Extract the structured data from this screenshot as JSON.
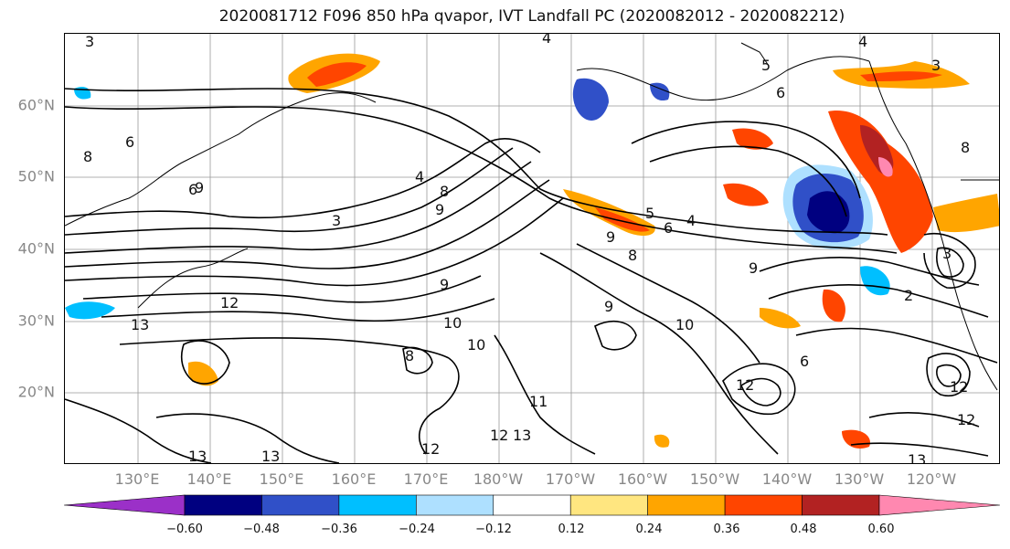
{
  "title": "2020081712 F096 850 hPa qvapor, IVT Landfall PC (2020082012 - 2020082212)",
  "map": {
    "lat_labels": [
      "60°N",
      "50°N",
      "40°N",
      "30°N",
      "20°N"
    ],
    "lon_labels": [
      "130°E",
      "140°E",
      "150°E",
      "160°E",
      "170°E",
      "180°W",
      "170°W",
      "160°W",
      "150°W",
      "140°W",
      "130°W",
      "120°W"
    ],
    "contour_labels": [
      "3",
      "4",
      "4",
      "3",
      "5",
      "6",
      "6",
      "8",
      "9",
      "6",
      "3",
      "4",
      "8",
      "9",
      "12",
      "13",
      "10",
      "10",
      "8",
      "9",
      "11",
      "12",
      "13",
      "12",
      "13",
      "13",
      "5",
      "4",
      "6",
      "8",
      "9",
      "9",
      "9",
      "10",
      "12",
      "6",
      "12",
      "12",
      "13",
      "8",
      "3",
      "2"
    ]
  },
  "colorbar": {
    "tick_labels": [
      "−0.60",
      "−0.48",
      "−0.36",
      "−0.24",
      "−0.12",
      "0.12",
      "0.24",
      "0.36",
      "0.48",
      "0.60"
    ],
    "colors": [
      "#9b30c8",
      "#000080",
      "#3050c8",
      "#00bfff",
      "#aee0ff",
      "#ffffff",
      "#ffe680",
      "#ffa500",
      "#ff4500",
      "#b22222",
      "#ff88b0"
    ]
  }
}
